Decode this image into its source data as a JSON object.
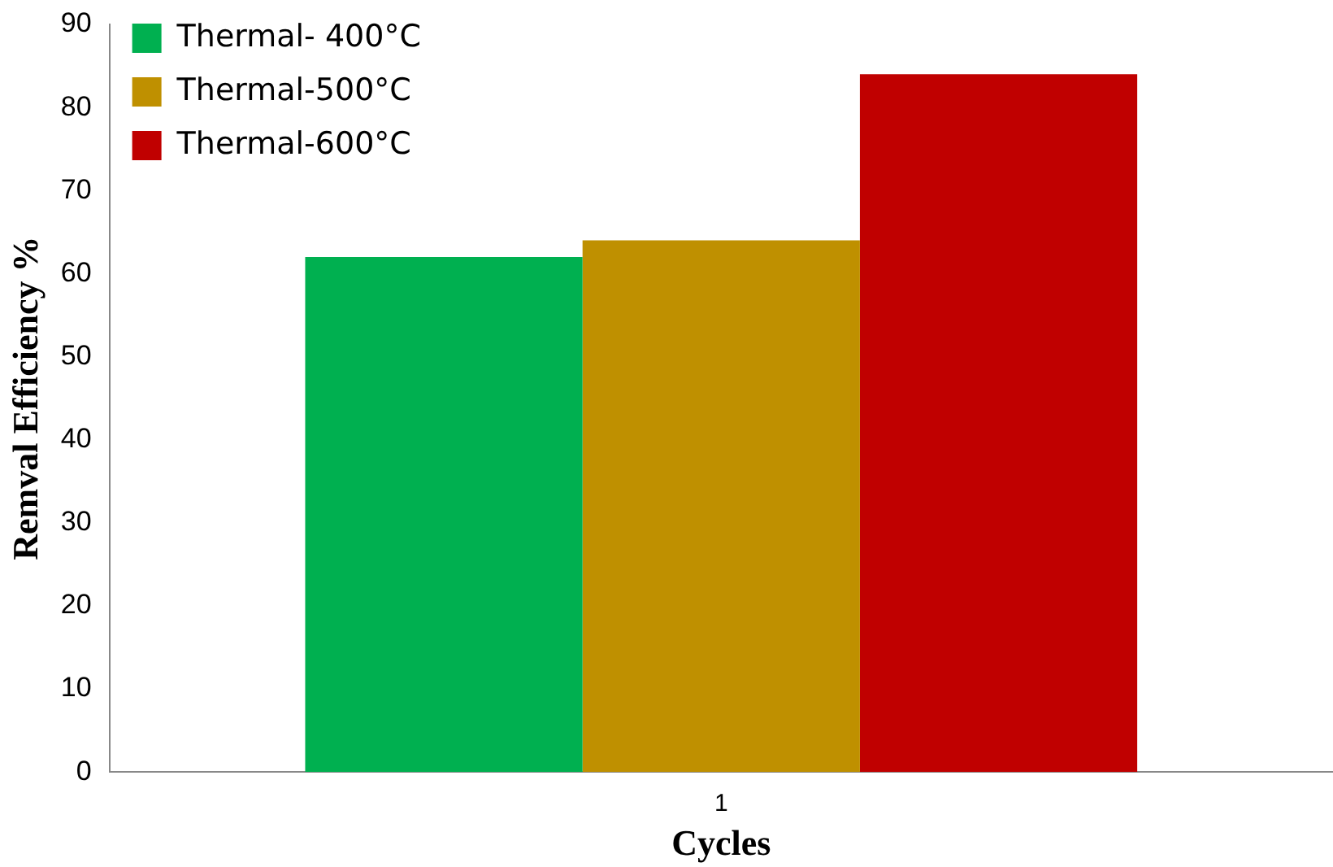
{
  "chart_data": {
    "type": "bar",
    "xlabel": "Cycles",
    "ylabel": "Remval Efficiency %",
    "categories": [
      "1"
    ],
    "series": [
      {
        "name": "Thermal- 400°C",
        "color": "#00b050",
        "values": [
          62
        ]
      },
      {
        "name": "Thermal-500°C",
        "color": "#bf9000",
        "values": [
          64
        ]
      },
      {
        "name": "Thermal-600°C",
        "color": "#c00000",
        "values": [
          84
        ]
      }
    ],
    "ylim": [
      0,
      90
    ],
    "yticks": [
      0,
      10,
      20,
      30,
      40,
      50,
      60,
      70,
      80,
      90
    ],
    "grid": false,
    "legend": "top left"
  }
}
